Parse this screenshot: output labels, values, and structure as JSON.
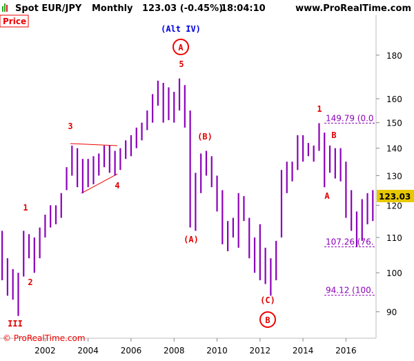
{
  "chart_data": {
    "type": "range-bar",
    "symbol": "Spot EUR/JPY",
    "period": "Monthly",
    "quote": "123.03 (-0.45%)",
    "time": "18:04:10",
    "site": "www.ProRealTime.com",
    "panel_label": "Price",
    "title": "(Alt IV)",
    "copyright": "© ProRealTime.com",
    "color": "#8a00b8",
    "log_scale": true,
    "grid": false,
    "xlim": [
      1999.9,
      2017.4
    ],
    "xticks": [
      2002,
      2004,
      2006,
      2008,
      2010,
      2012,
      2014,
      2016
    ],
    "ylim": [
      83.8,
      200.5
    ],
    "yticks": [
      90,
      100,
      110,
      120,
      130,
      140,
      150,
      160,
      180
    ],
    "last_price": 123.03,
    "levels": [
      {
        "value": 149.79,
        "label": "149.79 (0.0"
      },
      {
        "value": 107.26,
        "label": "107.26 (76."
      },
      {
        "value": 94.12,
        "label": "94.12 (100."
      }
    ],
    "annotations": [
      "A",
      "5",
      "3",
      "4",
      "1",
      "2",
      "III",
      "(B)",
      "(A)",
      "(C)",
      "B",
      "1",
      "B",
      "A"
    ],
    "x": [
      2000.0,
      2000.25,
      2000.5,
      2000.75,
      2001.0,
      2001.25,
      2001.5,
      2001.75,
      2002.0,
      2002.25,
      2002.5,
      2002.75,
      2003.0,
      2003.25,
      2003.5,
      2003.75,
      2004.0,
      2004.25,
      2004.5,
      2004.75,
      2005.0,
      2005.25,
      2005.5,
      2005.75,
      2006.0,
      2006.25,
      2006.5,
      2006.75,
      2007.0,
      2007.25,
      2007.5,
      2007.75,
      2008.0,
      2008.25,
      2008.5,
      2008.75,
      2009.0,
      2009.25,
      2009.5,
      2009.75,
      2010.0,
      2010.25,
      2010.5,
      2010.75,
      2011.0,
      2011.25,
      2011.5,
      2011.75,
      2012.0,
      2012.25,
      2012.5,
      2012.75,
      2013.0,
      2013.25,
      2013.5,
      2013.75,
      2014.0,
      2014.25,
      2014.5,
      2014.75,
      2015.0,
      2015.25,
      2015.5,
      2015.75,
      2016.0,
      2016.25,
      2016.5,
      2016.75,
      2017.0,
      2017.25
    ],
    "low": [
      98,
      94,
      93,
      89,
      99,
      104,
      100,
      104,
      110,
      113,
      114,
      116,
      125,
      130,
      126,
      124,
      126,
      127,
      130,
      133,
      131,
      130,
      132,
      136,
      137,
      140,
      143,
      147,
      150,
      157,
      150,
      151,
      150,
      155,
      148,
      113,
      112,
      124,
      130,
      126,
      118,
      108,
      106,
      110,
      107,
      115,
      104,
      100,
      98,
      97,
      94,
      98,
      110,
      124,
      128,
      132,
      135,
      137,
      135,
      139,
      126,
      131,
      129,
      128,
      116,
      112,
      107.26,
      109,
      114,
      115
    ],
    "high": [
      112,
      104,
      101,
      100,
      112,
      111,
      110,
      113,
      117,
      120,
      120,
      124,
      133,
      141,
      140,
      136,
      136,
      137,
      138,
      141,
      141,
      139,
      140,
      143,
      145,
      148,
      150,
      155,
      162,
      168,
      167,
      165,
      163,
      169,
      166,
      155,
      131,
      138,
      139,
      137,
      130,
      125,
      115,
      116,
      124,
      123,
      116,
      110,
      114,
      107,
      104,
      109,
      132,
      135,
      135,
      145,
      145,
      142,
      141,
      149.79,
      146,
      141,
      140,
      140,
      135,
      125,
      118,
      122,
      124,
      125
    ]
  }
}
